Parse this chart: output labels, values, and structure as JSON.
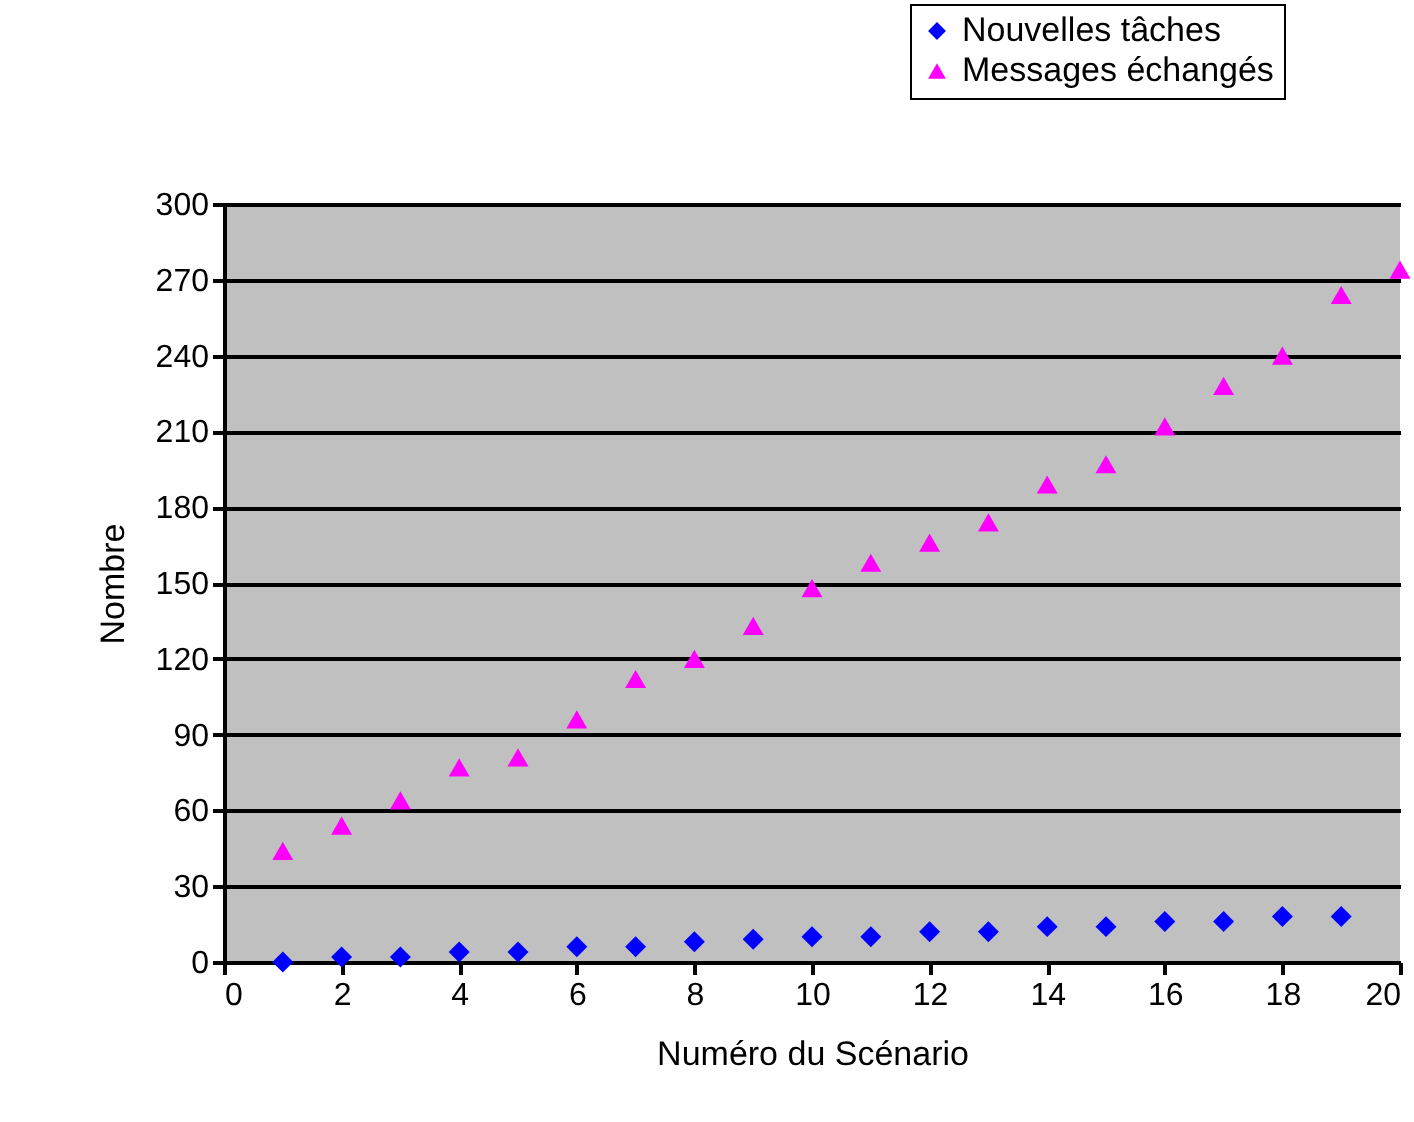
{
  "chart_data": {
    "type": "scatter",
    "xlabel": "Numéro du Scénario",
    "ylabel": "Nombre",
    "xlim": [
      0,
      20
    ],
    "xticks": [
      0,
      2,
      4,
      6,
      8,
      10,
      12,
      14,
      16,
      18,
      20
    ],
    "ylim": [
      0,
      300
    ],
    "yticks": [
      0,
      30,
      60,
      90,
      120,
      150,
      180,
      210,
      240,
      270,
      300
    ],
    "grid": "y",
    "legend": "top right",
    "series": [
      {
        "name": "Nouvelles tâches",
        "color": "#0000ff",
        "marker": "diamond",
        "x": [
          1,
          2,
          3,
          4,
          5,
          6,
          7,
          8,
          9,
          10,
          11,
          12,
          13,
          14,
          15,
          16,
          17,
          18,
          19
        ],
        "values": [
          0,
          2,
          2,
          4,
          4,
          6,
          6,
          8,
          9,
          10,
          10,
          12,
          12,
          14,
          14,
          16,
          16,
          18,
          18
        ]
      },
      {
        "name": "Messages échangés",
        "color": "#ff00ff",
        "marker": "triangle",
        "x": [
          1,
          2,
          3,
          4,
          5,
          6,
          7,
          8,
          9,
          10,
          11,
          12,
          13,
          14,
          15,
          16,
          17,
          18,
          19,
          20
        ],
        "values": [
          44,
          54,
          64,
          77,
          81,
          96,
          112,
          120,
          133,
          148,
          158,
          166,
          174,
          189,
          197,
          212,
          228,
          240,
          264,
          274
        ]
      }
    ]
  }
}
